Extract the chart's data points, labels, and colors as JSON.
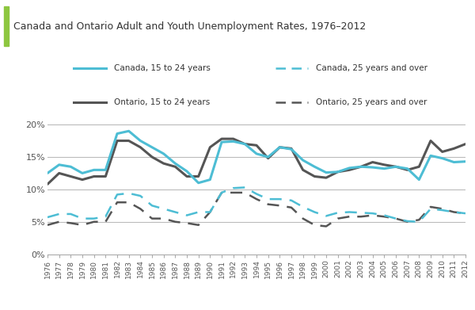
{
  "title": "Canada and Ontario Adult and Youth Unemployment Rates, 1976–2012",
  "years": [
    1976,
    1977,
    1978,
    1979,
    1980,
    1981,
    1982,
    1983,
    1984,
    1985,
    1986,
    1987,
    1988,
    1989,
    1990,
    1991,
    1992,
    1993,
    1994,
    1995,
    1996,
    1997,
    1998,
    1999,
    2000,
    2001,
    2002,
    2003,
    2004,
    2005,
    2006,
    2007,
    2008,
    2009,
    2010,
    2011,
    2012
  ],
  "canada_youth": [
    12.5,
    13.8,
    13.5,
    12.5,
    13.0,
    13.0,
    18.6,
    19.0,
    17.5,
    16.5,
    15.5,
    14.0,
    12.8,
    11.0,
    11.5,
    17.3,
    17.4,
    17.0,
    15.5,
    15.0,
    16.5,
    16.2,
    14.5,
    13.5,
    12.6,
    12.7,
    13.3,
    13.5,
    13.4,
    13.2,
    13.5,
    13.2,
    11.5,
    15.2,
    14.8,
    14.2,
    14.3
  ],
  "canada_adult": [
    5.7,
    6.2,
    6.2,
    5.5,
    5.5,
    5.8,
    9.2,
    9.4,
    9.0,
    7.5,
    7.0,
    6.5,
    6.0,
    6.5,
    6.5,
    9.5,
    10.2,
    10.3,
    9.3,
    8.5,
    8.5,
    8.3,
    7.3,
    6.5,
    5.9,
    6.4,
    6.5,
    6.4,
    6.3,
    6.0,
    5.5,
    5.1,
    5.0,
    7.0,
    6.8,
    6.5,
    6.3
  ],
  "ontario_youth": [
    10.8,
    12.5,
    12.0,
    11.5,
    12.0,
    12.0,
    17.5,
    17.5,
    16.5,
    15.0,
    14.0,
    13.5,
    12.0,
    12.0,
    16.5,
    17.8,
    17.8,
    17.0,
    16.8,
    14.8,
    16.5,
    16.3,
    13.0,
    12.0,
    11.8,
    12.7,
    13.0,
    13.5,
    14.2,
    13.8,
    13.5,
    13.0,
    13.5,
    17.5,
    15.8,
    16.3,
    17.0
  ],
  "ontario_adult": [
    4.5,
    5.0,
    4.8,
    4.5,
    5.0,
    5.0,
    8.0,
    8.0,
    7.0,
    5.5,
    5.5,
    5.0,
    4.8,
    4.5,
    6.5,
    9.5,
    9.5,
    9.5,
    8.5,
    7.7,
    7.5,
    7.2,
    5.5,
    4.5,
    4.3,
    5.5,
    5.8,
    5.8,
    6.0,
    5.8,
    5.5,
    5.0,
    5.3,
    7.3,
    7.0,
    6.5,
    6.3
  ],
  "canada_color": "#4dbdd4",
  "ontario_color": "#555555",
  "title_bg_color": "#e8e8e8",
  "title_bar_color": "#8dc63f",
  "bg_color": "#ffffff",
  "ylim": [
    0,
    22
  ],
  "yticks": [
    0,
    5,
    10,
    15,
    20
  ],
  "ytick_labels": [
    "0%",
    "5%",
    "10%",
    "15%",
    "20%"
  ],
  "legend_canada_youth": "Canada, 15 to 24 years",
  "legend_canada_adult": "Canada, 25 years and over",
  "legend_ontario_youth": "Ontario, 15 to 24 years",
  "legend_ontario_adult": "Ontario, 25 years and over"
}
